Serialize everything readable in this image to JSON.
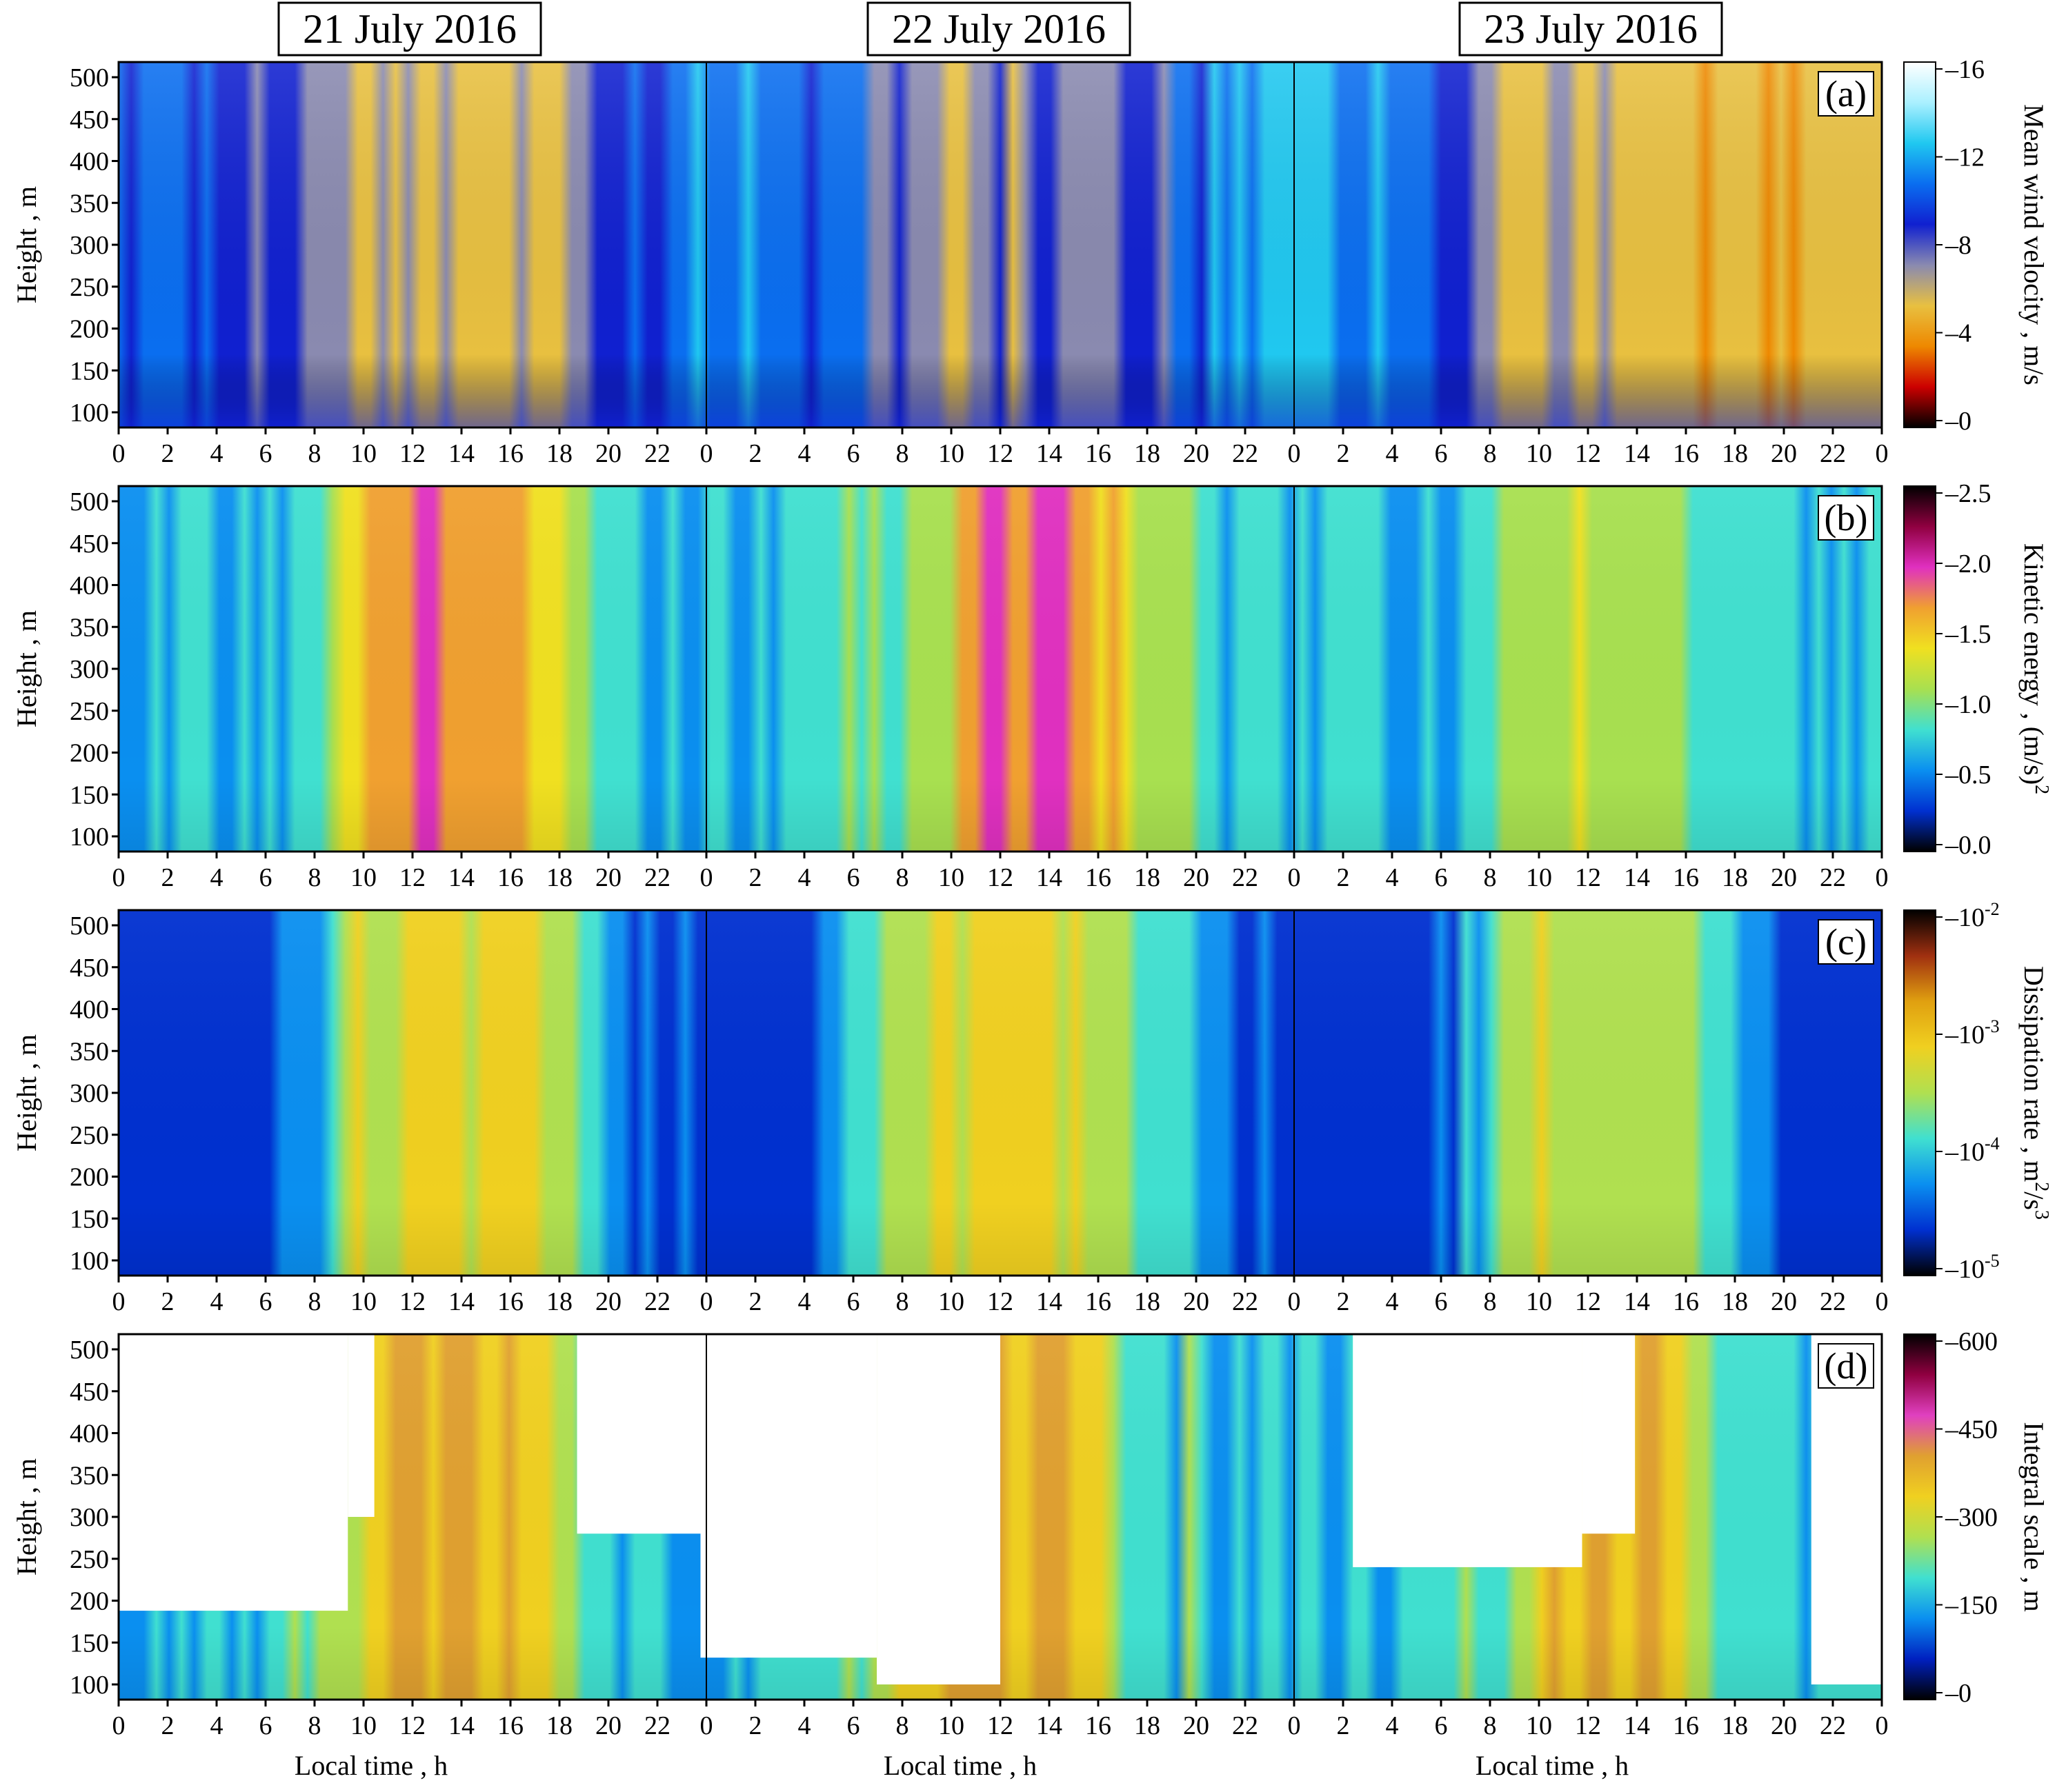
{
  "dates": [
    "21 July 2016",
    "22 July 2016",
    "23 July 2016"
  ],
  "x_tick_labels": [
    "0",
    "2",
    "4",
    "6",
    "8",
    "10",
    "12",
    "14",
    "16",
    "18",
    "20",
    "22",
    "0",
    "2",
    "4",
    "6",
    "8",
    "10",
    "12",
    "14",
    "16",
    "18",
    "20",
    "22",
    "0",
    "2",
    "4",
    "6",
    "8",
    "10",
    "12",
    "14",
    "16",
    "18",
    "20",
    "22",
    "0"
  ],
  "y_tick_labels": [
    "100",
    "150",
    "200",
    "250",
    "300",
    "350",
    "400",
    "450",
    "500"
  ],
  "x_axis_title": "Local time , h",
  "y_axis_title": "Height , m",
  "chart_data": [
    {
      "type": "heatmap",
      "panel": "(a)",
      "x": "Local time , h (0–72 h across 21–23 July 2016)",
      "ylabel": "Height , m",
      "xlabel": "Local time , h",
      "ylim": [
        100,
        500
      ],
      "colorbar_label": "Mean wind velocity , m/s",
      "colorbar_ticks": [
        "16",
        "12",
        "8",
        "4",
        "0"
      ],
      "colorbar_range": [
        0,
        16
      ],
      "colorscale": [
        "#000000",
        "#cc0000",
        "#ee8800",
        "#e8c040",
        "#8a8ab0",
        "#1020d0",
        "#0a6ef0",
        "#20c8f0",
        "#aaf0ff",
        "#ffffff"
      ]
    },
    {
      "type": "heatmap",
      "panel": "(b)",
      "ylabel": "Height , m",
      "xlabel": "Local time , h",
      "ylim": [
        100,
        500
      ],
      "colorbar_label": "Kinetic energy , (m/s)",
      "colorbar_label_sup": "2",
      "colorbar_ticks": [
        "2.5",
        "2.0",
        "1.5",
        "1.0",
        "0.5",
        "0.0"
      ],
      "colorbar_range": [
        0,
        2.5
      ],
      "colorscale": [
        "#000000",
        "#0030d0",
        "#0a8ff0",
        "#40e0d0",
        "#a8e050",
        "#f0e020",
        "#f0a030",
        "#e030c0",
        "#900040",
        "#000000"
      ]
    },
    {
      "type": "heatmap",
      "panel": "(c)",
      "ylabel": "Height , m",
      "xlabel": "Local time , h",
      "ylim": [
        100,
        500
      ],
      "colorbar_label": "Dissipation rate , m",
      "colorbar_label_sup1": "2",
      "colorbar_label_mid": "/s",
      "colorbar_label_sup2": "3",
      "colorbar_ticks": [
        "10",
        "10",
        "10",
        "10"
      ],
      "colorbar_tick_exponents": [
        "-2",
        "-3",
        "-4",
        "-5"
      ],
      "colorbar_range": [
        "1e-5",
        "1e-2"
      ],
      "colorbar_scale": "log",
      "colorscale": [
        "#000000",
        "#0030d0",
        "#0a8ff0",
        "#40e0d0",
        "#b0e050",
        "#f0d020",
        "#e0a010",
        "#a03010",
        "#000000"
      ]
    },
    {
      "type": "heatmap",
      "panel": "(d)",
      "ylabel": "Height , m",
      "xlabel": "Local time , h",
      "ylim": [
        100,
        500
      ],
      "colorbar_label": "Integral scale , m",
      "colorbar_ticks": [
        "600",
        "450",
        "300",
        "150",
        "0"
      ],
      "colorbar_range": [
        0,
        600
      ],
      "colorscale": [
        "#000000",
        "#0020c0",
        "#0a8ff0",
        "#40e0d0",
        "#b0e050",
        "#f0d020",
        "#e0a030",
        "#e040c0",
        "#900040",
        "#000000"
      ]
    }
  ]
}
